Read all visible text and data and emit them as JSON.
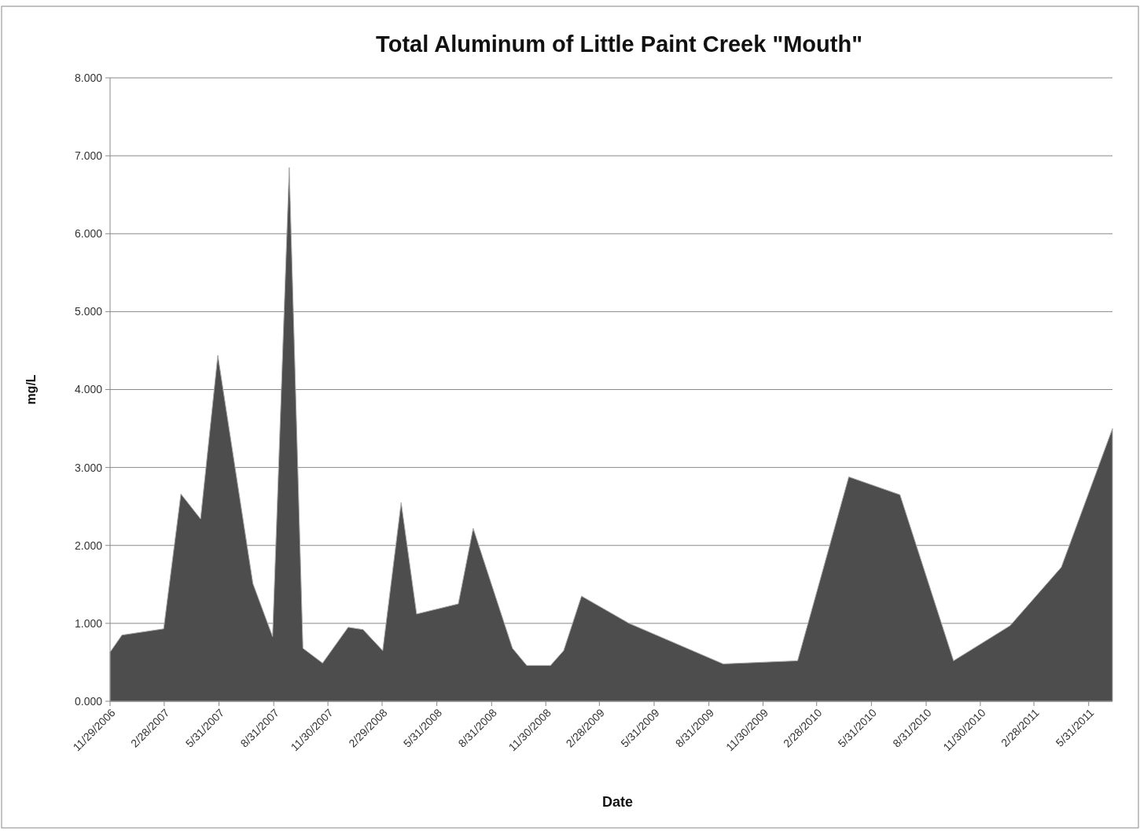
{
  "chart_data": {
    "type": "area",
    "title": "Total Aluminum of Little Paint Creek \"Mouth\"",
    "xlabel": "Date",
    "ylabel": "mg/L",
    "x": [
      "2006-11-29",
      "2006-12-19",
      "2007-02-27",
      "2007-03-28",
      "2007-04-30",
      "2007-05-29",
      "2007-07-27",
      "2007-08-29",
      "2007-09-26",
      "2007-10-19",
      "2007-11-21",
      "2008-01-03",
      "2008-01-28",
      "2008-03-01",
      "2008-04-01",
      "2008-04-27",
      "2008-07-06",
      "2008-07-31",
      "2008-10-05",
      "2008-10-29",
      "2008-12-08",
      "2008-12-30",
      "2009-01-29",
      "2009-04-19",
      "2009-09-24",
      "2010-01-27",
      "2010-04-23",
      "2010-07-18",
      "2010-10-16",
      "2011-01-19",
      "2011-04-15",
      "2011-07-10"
    ],
    "values": [
      0.63,
      0.85,
      0.93,
      2.66,
      2.34,
      4.44,
      1.51,
      0.83,
      6.85,
      0.68,
      0.49,
      0.95,
      0.92,
      0.65,
      2.55,
      1.12,
      1.25,
      2.22,
      0.68,
      0.46,
      0.46,
      0.65,
      1.35,
      1.0,
      0.48,
      0.52,
      2.88,
      2.65,
      0.52,
      0.97,
      1.72,
      3.5
    ],
    "color": "#4d4d4d",
    "xlim": [
      "2006-11-29",
      "2011-07-10"
    ],
    "xticks": [
      {
        "value": "2006-11-29",
        "label": "11/29/2006"
      },
      {
        "value": "2007-02-28",
        "label": "2/28/2007"
      },
      {
        "value": "2007-05-31",
        "label": "5/31/2007"
      },
      {
        "value": "2007-08-31",
        "label": "8/31/2007"
      },
      {
        "value": "2007-11-30",
        "label": "11/30/2007"
      },
      {
        "value": "2008-02-29",
        "label": "2/29/2008"
      },
      {
        "value": "2008-05-31",
        "label": "5/31/2008"
      },
      {
        "value": "2008-08-31",
        "label": "8/31/2008"
      },
      {
        "value": "2008-11-30",
        "label": "11/30/2008"
      },
      {
        "value": "2009-02-28",
        "label": "2/28/2009"
      },
      {
        "value": "2009-05-31",
        "label": "5/31/2009"
      },
      {
        "value": "2009-08-31",
        "label": "8/31/2009"
      },
      {
        "value": "2009-11-30",
        "label": "11/30/2009"
      },
      {
        "value": "2010-02-28",
        "label": "2/28/2010"
      },
      {
        "value": "2010-05-31",
        "label": "5/31/2010"
      },
      {
        "value": "2010-08-31",
        "label": "8/31/2010"
      },
      {
        "value": "2010-11-30",
        "label": "11/30/2010"
      },
      {
        "value": "2011-02-28",
        "label": "2/28/2011"
      },
      {
        "value": "2011-05-31",
        "label": "5/31/2011"
      }
    ],
    "ylim": [
      0,
      8
    ],
    "yticks": [
      {
        "value": 0,
        "label": "0.000"
      },
      {
        "value": 1,
        "label": "1.000"
      },
      {
        "value": 2,
        "label": "2.000"
      },
      {
        "value": 3,
        "label": "3.000"
      },
      {
        "value": 4,
        "label": "4.000"
      },
      {
        "value": 5,
        "label": "5.000"
      },
      {
        "value": 6,
        "label": "6.000"
      },
      {
        "value": 7,
        "label": "7.000"
      },
      {
        "value": 8,
        "label": "8.000"
      }
    ],
    "grid": "y"
  }
}
